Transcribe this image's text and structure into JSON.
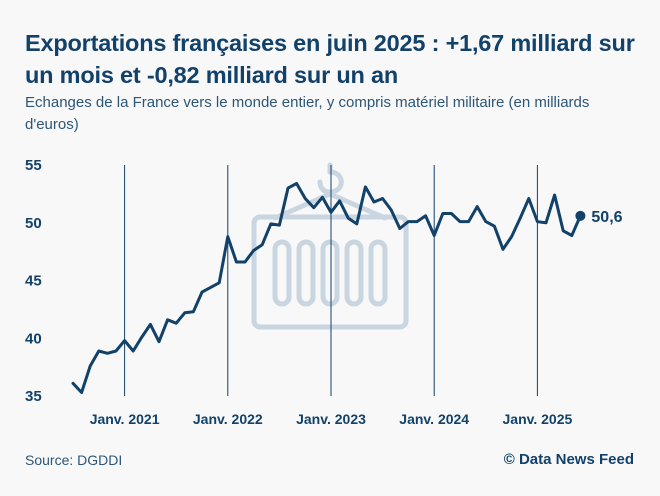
{
  "header": {
    "title": "Exportations françaises en juin 2025 : +1,67 milliard sur un mois et -0,82 milliard sur un an",
    "subtitle": "Echanges de la France vers le monde entier, y compris matériel militaire (en milliards d'euros)"
  },
  "footer": {
    "source": "Source: DGDDI",
    "credit": "© Data News Feed"
  },
  "watermark": {
    "icon": "shipping-container-icon"
  },
  "chart_data": {
    "type": "line",
    "title": "Exportations françaises en juin 2025 : +1,67 milliard sur un mois et -0,82 milliard sur un an",
    "subtitle": "Echanges de la France vers le monde entier, y compris matériel militaire (en milliards d'euros)",
    "xlabel": "",
    "ylabel": "",
    "ylim": [
      35,
      55
    ],
    "yticks": [
      55,
      50,
      45,
      40,
      35
    ],
    "ytick_labels": [
      "55",
      "50",
      "45",
      "40",
      "35"
    ],
    "xtick_labels": [
      "Janv. 2021",
      "Janv. 2022",
      "Janv. 2023",
      "Janv. 2024",
      "Janv. 2025"
    ],
    "xtick_months": [
      "2021-01",
      "2022-01",
      "2023-01",
      "2024-01",
      "2025-01"
    ],
    "grid": "vertical lines at each January",
    "line_color": "#12416a",
    "end_label": "50,6",
    "x": [
      "2020-07",
      "2020-08",
      "2020-09",
      "2020-10",
      "2020-11",
      "2020-12",
      "2021-01",
      "2021-02",
      "2021-03",
      "2021-04",
      "2021-05",
      "2021-06",
      "2021-07",
      "2021-08",
      "2021-09",
      "2021-10",
      "2021-11",
      "2021-12",
      "2022-01",
      "2022-02",
      "2022-03",
      "2022-04",
      "2022-05",
      "2022-06",
      "2022-07",
      "2022-08",
      "2022-09",
      "2022-10",
      "2022-11",
      "2022-12",
      "2023-01",
      "2023-02",
      "2023-03",
      "2023-04",
      "2023-05",
      "2023-06",
      "2023-07",
      "2023-08",
      "2023-09",
      "2023-10",
      "2023-11",
      "2023-12",
      "2024-01",
      "2024-02",
      "2024-03",
      "2024-04",
      "2024-05",
      "2024-06",
      "2024-07",
      "2024-08",
      "2024-09",
      "2024-10",
      "2024-11",
      "2024-12",
      "2025-01",
      "2025-02",
      "2025-03",
      "2025-04",
      "2025-05",
      "2025-06"
    ],
    "series": [
      {
        "name": "Exportations",
        "values": [
          36.1,
          35.3,
          37.6,
          38.9,
          38.7,
          38.9,
          39.8,
          38.9,
          40.1,
          41.2,
          39.7,
          41.6,
          41.3,
          42.2,
          42.3,
          44.0,
          44.4,
          44.8,
          48.8,
          46.6,
          46.6,
          47.6,
          48.1,
          49.9,
          49.8,
          53.0,
          53.4,
          52.1,
          51.3,
          52.2,
          50.9,
          51.9,
          50.4,
          49.9,
          53.1,
          51.8,
          52.1,
          51.1,
          49.5,
          50.1,
          50.1,
          50.6,
          48.9,
          50.8,
          50.8,
          50.1,
          50.1,
          51.4,
          50.1,
          49.7,
          47.7,
          48.8,
          50.4,
          52.1,
          50.1,
          50.0,
          52.4,
          49.3,
          48.9,
          50.6
        ]
      }
    ]
  }
}
